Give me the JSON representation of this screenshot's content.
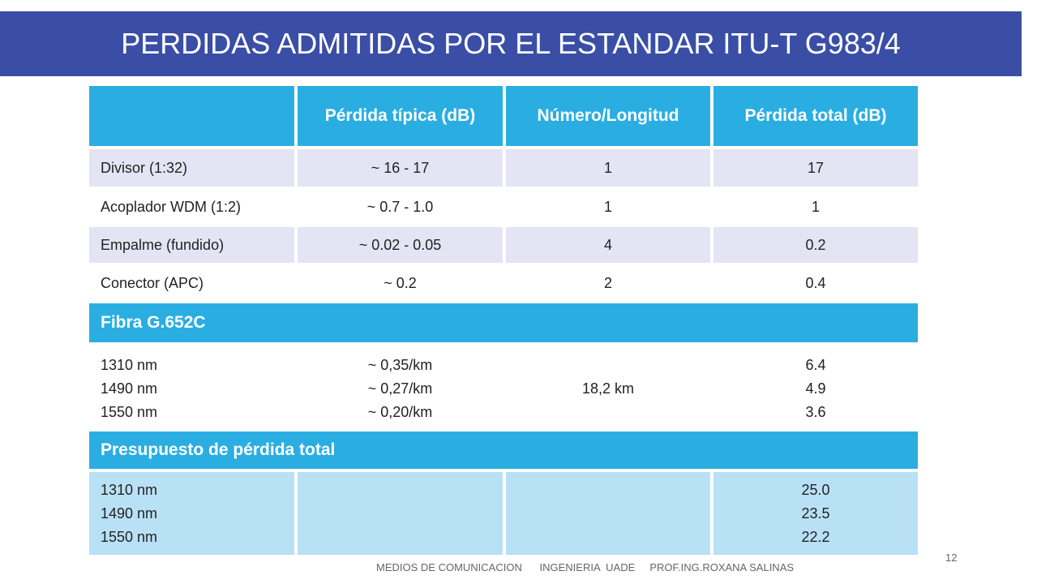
{
  "title": "PERDIDAS ADMITIDAS POR EL ESTANDAR ITU-T G983/4",
  "headers": [
    "",
    "Pérdida típica (dB)",
    "Número/Longitud",
    "Pérdida total (dB)"
  ],
  "rows": [
    [
      "Divisor (1:32)",
      "~ 16 - 17",
      "1",
      "17"
    ],
    [
      "Acoplador WDM (1:2)",
      "~ 0.7 - 1.0",
      "1",
      "1"
    ],
    [
      "Empalme (fundido)",
      "~ 0.02 - 0.05",
      "4",
      "0.2"
    ],
    [
      "Conector (APC)",
      "~ 0.2",
      "2",
      "0.4"
    ]
  ],
  "fibra": {
    "label": "Fibra G.652C",
    "wavelengths": [
      "1310 nm",
      "1490 nm",
      "1550 nm"
    ],
    "typical": [
      "~ 0,35/km",
      "~ 0,27/km",
      "~ 0,20/km"
    ],
    "length": "18,2 km",
    "totals": [
      "6.4",
      "4.9",
      "3.6"
    ]
  },
  "budget": {
    "label": "Presupuesto de pérdida total",
    "wavelengths": [
      "1310 nm",
      "1490 nm",
      "1550 nm"
    ],
    "totals": [
      "25.0",
      "23.5",
      "22.2"
    ]
  },
  "footer": "MEDIOS DE COMUNICACION      INGENIERIA  UADE     PROF.ING.ROXANA SALINAS",
  "page_number": "12"
}
